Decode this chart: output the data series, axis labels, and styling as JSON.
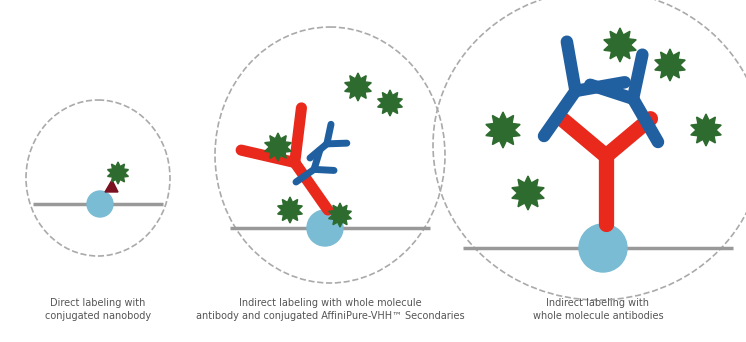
{
  "background_color": "#ffffff",
  "text_color": "#555555",
  "label1": "Direct labeling with\nconjugated nanobody",
  "label2": "Indirect labeling with whole molecule\nantibody and conjugated AffiniPure-VHH™ Secondaries",
  "label3": "Indirect labeling with\nwhole molecule antibodies",
  "font_size": 7.0,
  "red_color": "#e8291c",
  "blue_color": "#2060a0",
  "green_color": "#2e6b2e",
  "dark_red": "#7a1020",
  "light_blue": "#7abcd4",
  "gray": "#999999"
}
